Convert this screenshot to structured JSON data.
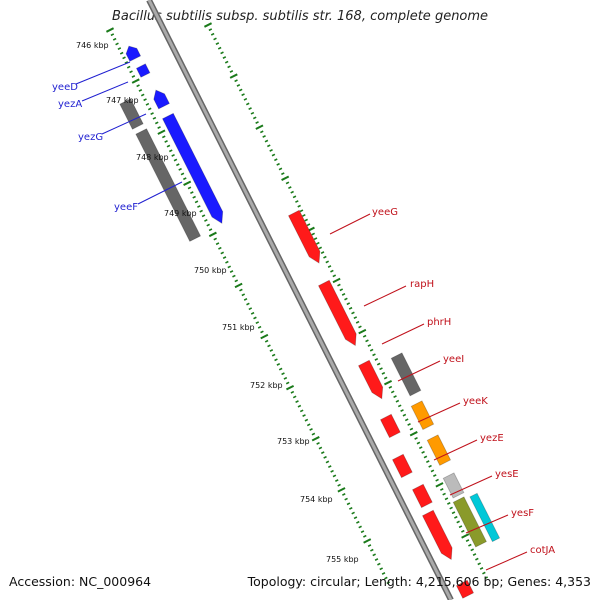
{
  "title": "Bacillus subtilis subsp. subtilis str. 168, complete genome",
  "accession": "Accession: NC_000964",
  "topology": "Topology: circular; Length: 4,215,606 bp; Genes: 4,353",
  "ticks": [
    "746 kbp",
    "747 kbp",
    "748 kbp",
    "749 kbp",
    "750 kbp",
    "751 kbp",
    "752 kbp",
    "753 kbp",
    "754 kbp",
    "755 kbp"
  ],
  "left_genes": [
    "yeeD",
    "yezA",
    "yezG",
    "yeeF"
  ],
  "right_genes": [
    "yeeG",
    "rapH",
    "phrH",
    "yeeI",
    "yeeK",
    "yezE",
    "yesE",
    "yesF",
    "cotJA"
  ],
  "colors": {
    "blue": "#1a1aff",
    "red": "#ff1a1a",
    "gray": "#666666",
    "orange": "#ff9a00",
    "cyan": "#00c8d8",
    "olive": "#8a9a2a",
    "backbone": "#8c8c8c",
    "tick_green": "#1a7a1a"
  }
}
